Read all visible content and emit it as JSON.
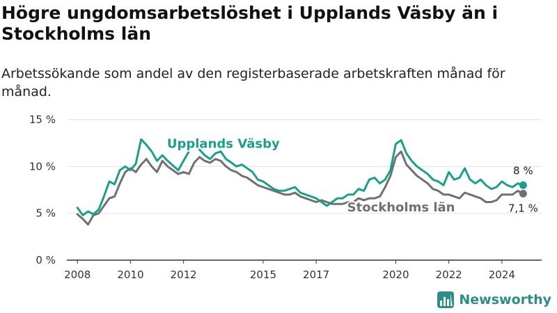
{
  "header": {
    "title": "Högre ungdomsarbetslöshet i Upplands Väsby än i Stockholms län",
    "subtitle": "Arbetssökande som andel av den registerbaserade arbetskraften månad för månad."
  },
  "brand": {
    "name": "Newsworthy"
  },
  "colors": {
    "vasby": "#1a9e8f",
    "stockholm": "#707070",
    "grid": "#e2e2e2",
    "axis": "#333333"
  },
  "chart_data": {
    "type": "line",
    "title": "Högre ungdomsarbetslöshet i Upplands Väsby än i Stockholms län",
    "subtitle": "Arbetssökande som andel av den registerbaserade arbetskraften månad för månad.",
    "xlabel": "",
    "ylabel": "",
    "ylim": [
      0,
      15
    ],
    "xlim": [
      2007.6,
      2025.5
    ],
    "y_ticks": [
      0,
      5,
      10,
      15
    ],
    "y_tick_labels": [
      "0 %",
      "5 %",
      "10 %",
      "15 %"
    ],
    "x_ticks": [
      2008,
      2010,
      2012,
      2015,
      2017,
      2020,
      2022,
      2024
    ],
    "x_tick_labels": [
      "2008",
      "2010",
      "2012",
      "2015",
      "2017",
      "2020",
      "2022",
      "2024"
    ],
    "grid": "horizontal",
    "legend": "inline labels",
    "end_labels": {
      "vasby": "8 %",
      "stockholm": "7,1 %"
    },
    "series": [
      {
        "name": "Upplands Väsby",
        "key": "vasby",
        "x": [
          2008.0,
          2008.2,
          2008.4,
          2008.6,
          2008.8,
          2009.0,
          2009.2,
          2009.4,
          2009.6,
          2009.8,
          2010.0,
          2010.2,
          2010.4,
          2010.6,
          2010.8,
          2011.0,
          2011.2,
          2011.4,
          2011.6,
          2011.8,
          2012.0,
          2012.2,
          2012.4,
          2012.6,
          2012.8,
          2013.0,
          2013.2,
          2013.4,
          2013.6,
          2013.8,
          2014.0,
          2014.2,
          2014.4,
          2014.6,
          2014.8,
          2015.0,
          2015.2,
          2015.4,
          2015.6,
          2015.8,
          2016.0,
          2016.2,
          2016.4,
          2016.6,
          2016.8,
          2017.0,
          2017.2,
          2017.4,
          2017.6,
          2017.8,
          2018.0,
          2018.2,
          2018.4,
          2018.6,
          2018.8,
          2019.0,
          2019.2,
          2019.4,
          2019.6,
          2019.8,
          2020.0,
          2020.2,
          2020.4,
          2020.6,
          2020.8,
          2021.0,
          2021.2,
          2021.4,
          2021.6,
          2021.8,
          2022.0,
          2022.2,
          2022.4,
          2022.6,
          2022.8,
          2023.0,
          2023.2,
          2023.4,
          2023.6,
          2023.8,
          2024.0,
          2024.2,
          2024.4,
          2024.6,
          2024.8
        ],
        "values": [
          5.6,
          4.8,
          5.2,
          4.9,
          5.4,
          6.8,
          8.4,
          8.1,
          9.6,
          10.0,
          9.6,
          10.3,
          12.9,
          12.3,
          11.6,
          10.6,
          11.2,
          10.6,
          10.1,
          9.6,
          10.6,
          11.6,
          12.6,
          11.8,
          11.2,
          10.8,
          11.4,
          11.6,
          10.8,
          10.4,
          10.0,
          10.2,
          9.8,
          9.4,
          8.6,
          8.4,
          8.0,
          7.6,
          7.4,
          7.4,
          7.6,
          7.8,
          7.2,
          7.0,
          6.8,
          6.6,
          6.2,
          5.8,
          6.2,
          6.6,
          6.6,
          7.0,
          7.0,
          7.6,
          7.4,
          8.6,
          8.8,
          8.2,
          8.6,
          9.6,
          12.4,
          12.8,
          11.4,
          10.6,
          10.0,
          9.6,
          9.2,
          8.6,
          8.4,
          8.0,
          9.4,
          8.6,
          8.8,
          9.8,
          8.6,
          8.2,
          8.6,
          8.0,
          7.6,
          7.8,
          8.4,
          8.0,
          7.8,
          8.2,
          8.0
        ]
      },
      {
        "name": "Stockholms län",
        "key": "stockholm",
        "x": [
          2008.0,
          2008.2,
          2008.4,
          2008.6,
          2008.8,
          2009.0,
          2009.2,
          2009.4,
          2009.6,
          2009.8,
          2010.0,
          2010.2,
          2010.4,
          2010.6,
          2010.8,
          2011.0,
          2011.2,
          2011.4,
          2011.6,
          2011.8,
          2012.0,
          2012.2,
          2012.4,
          2012.6,
          2012.8,
          2013.0,
          2013.2,
          2013.4,
          2013.6,
          2013.8,
          2014.0,
          2014.2,
          2014.4,
          2014.6,
          2014.8,
          2015.0,
          2015.2,
          2015.4,
          2015.6,
          2015.8,
          2016.0,
          2016.2,
          2016.4,
          2016.6,
          2016.8,
          2017.0,
          2017.2,
          2017.4,
          2017.6,
          2017.8,
          2018.0,
          2018.2,
          2018.4,
          2018.6,
          2018.8,
          2019.0,
          2019.2,
          2019.4,
          2019.6,
          2019.8,
          2020.0,
          2020.2,
          2020.4,
          2020.6,
          2020.8,
          2021.0,
          2021.2,
          2021.4,
          2021.6,
          2021.8,
          2022.0,
          2022.2,
          2022.4,
          2022.6,
          2022.8,
          2023.0,
          2023.2,
          2023.4,
          2023.6,
          2023.8,
          2024.0,
          2024.2,
          2024.4,
          2024.6,
          2024.8
        ],
        "values": [
          4.9,
          4.4,
          3.8,
          4.8,
          5.0,
          5.8,
          6.6,
          6.8,
          8.2,
          9.4,
          9.8,
          9.4,
          10.2,
          10.8,
          10.0,
          9.4,
          10.6,
          10.0,
          9.6,
          9.2,
          9.4,
          9.2,
          10.4,
          11.0,
          10.6,
          10.4,
          10.8,
          10.6,
          10.0,
          9.6,
          9.4,
          9.0,
          8.8,
          8.4,
          8.0,
          7.8,
          7.6,
          7.4,
          7.2,
          7.0,
          7.0,
          7.2,
          6.8,
          6.6,
          6.4,
          6.2,
          6.4,
          6.2,
          6.0,
          6.0,
          6.0,
          6.2,
          6.2,
          6.6,
          6.4,
          6.6,
          6.6,
          6.8,
          7.8,
          9.0,
          11.0,
          11.6,
          10.2,
          9.6,
          9.0,
          8.6,
          8.2,
          7.6,
          7.4,
          7.0,
          7.0,
          6.8,
          6.6,
          7.2,
          7.0,
          6.8,
          6.6,
          6.2,
          6.2,
          6.4,
          7.0,
          7.0,
          7.0,
          7.4,
          7.1
        ]
      }
    ],
    "inline_labels": [
      {
        "series": "vasby",
        "x": 2013.5,
        "y": 12.0
      },
      {
        "series": "stockholm",
        "x": 2020.2,
        "y": 5.2
      }
    ]
  }
}
